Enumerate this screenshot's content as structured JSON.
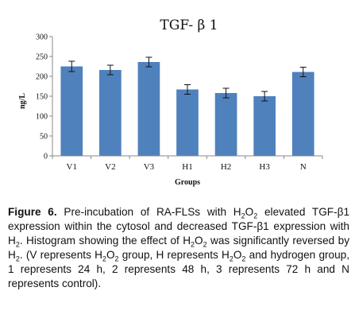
{
  "chart_data": {
    "type": "bar",
    "title": "TGF- β 1",
    "ylabel": "ng/L",
    "xlabel": "Groups",
    "ylim": [
      0,
      300
    ],
    "yticks": [
      0,
      50,
      100,
      150,
      200,
      250,
      300
    ],
    "categories": [
      "V1",
      "V2",
      "V3",
      "H1",
      "H2",
      "H3",
      "N"
    ],
    "values": [
      225,
      216,
      236,
      167,
      158,
      150,
      211
    ],
    "errors": [
      13,
      12,
      12,
      12,
      12,
      12,
      12
    ],
    "bar_color": "#4f81bd",
    "legend": "none",
    "grid": false
  },
  "caption": {
    "label": "Figure 6.",
    "segments": [
      {
        "t": " Pre-incubation of RA-FLSs with H"
      },
      {
        "s": "2"
      },
      {
        "t": "O"
      },
      {
        "s": "2"
      },
      {
        "t": " elevated TGF-β1 expression within the cytosol and decreased TGF-β1 expression with H"
      },
      {
        "s": "2"
      },
      {
        "t": ". Histogram showing the effect of H"
      },
      {
        "s": "2"
      },
      {
        "t": "O"
      },
      {
        "s": "2"
      },
      {
        "t": " was significantly reversed by H"
      },
      {
        "s": "2"
      },
      {
        "t": ". (V represents H"
      },
      {
        "s": "2"
      },
      {
        "t": "O"
      },
      {
        "s": "2"
      },
      {
        "t": " group, H represents H"
      },
      {
        "s": "2"
      },
      {
        "t": "O"
      },
      {
        "s": "2"
      },
      {
        "t": " and hydrogen group, 1 represents 24 h, 2 represents 48 h, 3 represents 72 h and N represents control)."
      }
    ]
  }
}
